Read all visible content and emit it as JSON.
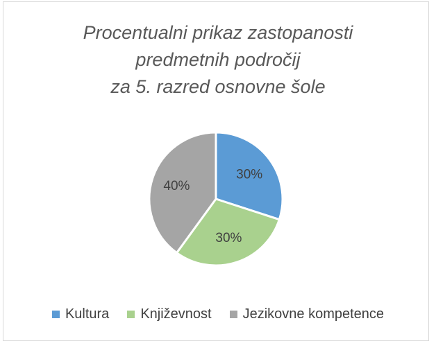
{
  "chart_data": {
    "type": "pie",
    "title": {
      "lines": [
        "Procentualni prikaz zastopanosti",
        "predmetnih področij",
        "za 5. razred osnovne šole"
      ]
    },
    "slices": [
      {
        "label": "Kultura",
        "value": 30,
        "value_label": "30%",
        "color": "#5b9bd5"
      },
      {
        "label": "Književnost",
        "value": 30,
        "value_label": "30%",
        "color": "#a9d18e"
      },
      {
        "label": "Jezikovne kompetence",
        "value": 40,
        "value_label": "40%",
        "color": "#a5a5a5"
      }
    ],
    "legend_position": "bottom",
    "data_label_color": "#404040"
  }
}
